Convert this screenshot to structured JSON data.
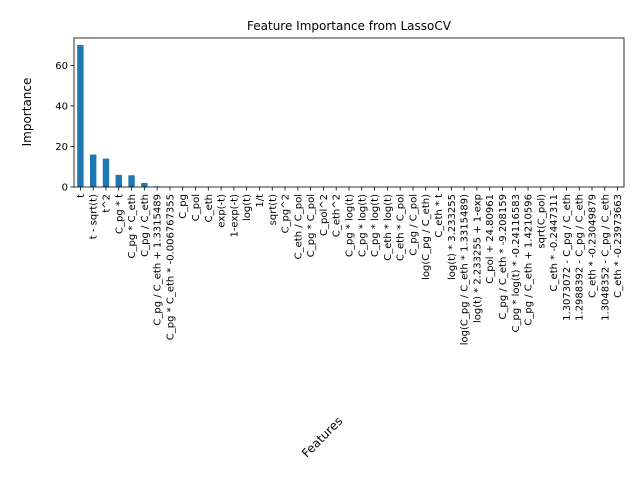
{
  "chart_data": {
    "type": "bar",
    "title": "Feature Importance from LassoCV",
    "xlabel": "Features",
    "ylabel": "Importance",
    "ylim": [
      0,
      73.5
    ],
    "yticks": [
      0,
      20,
      40,
      60
    ],
    "bar_color": "#1f77b4",
    "grid": false,
    "legend": "none",
    "categories": [
      "t",
      "t - sqrt(t)",
      "t^2",
      "C_pg * t",
      "C_pg * C_eth",
      "C_pg / C_eth",
      "C_pg / C_eth + 1.3315489",
      "C_pg * C_eth * -0.006767355",
      "C_pg",
      "C_pol",
      "C_eth",
      "exp(-t)",
      "1-exp(-t)",
      "log(t)",
      "1/t",
      "sqrt(t)",
      "C_pg^2",
      "C_eth / C_pol",
      "C_pg * C_pol",
      "C_pol^2",
      "C_eth^2",
      "C_pg * log(t)",
      "C_pg * log(t)",
      "C_pg * log(t)",
      "C_eth * log(t)",
      "C_eth * C_pol",
      "C_pg / C_pol",
      "log(C_pg / C_eth)",
      "C_eth * t",
      "log(t) * 3.233255",
      "log(C_pg / C_eth * 1.3315489)",
      "log(t) * 2.233255 + 1-exp",
      "C_pol + 24.80961",
      "C_pg / C_eth * -9.208159",
      "C_pg * log(t) * -0.24116583",
      "C_pg / C_eth + 1.4210596",
      "sqrt(C_pol)",
      "C_eth * -0.2447311",
      "1.3073072 - C_pg / C_eth",
      "1.2988392 - C_pg / C_eth",
      "C_eth * -0.23049879",
      "1.3048352 - C_pg / C_eth",
      "C_eth * -0.23973663"
    ],
    "values": [
      70.0,
      16.0,
      14.0,
      6.0,
      5.8,
      2.0,
      0.3,
      0.1,
      0,
      0,
      0,
      0,
      0,
      0,
      0,
      0,
      0,
      0,
      0,
      0,
      0,
      0,
      0,
      0,
      0,
      0,
      0,
      0,
      0,
      0,
      0,
      0,
      0,
      0,
      0,
      0,
      0,
      0,
      0,
      0,
      0,
      0,
      0
    ]
  }
}
